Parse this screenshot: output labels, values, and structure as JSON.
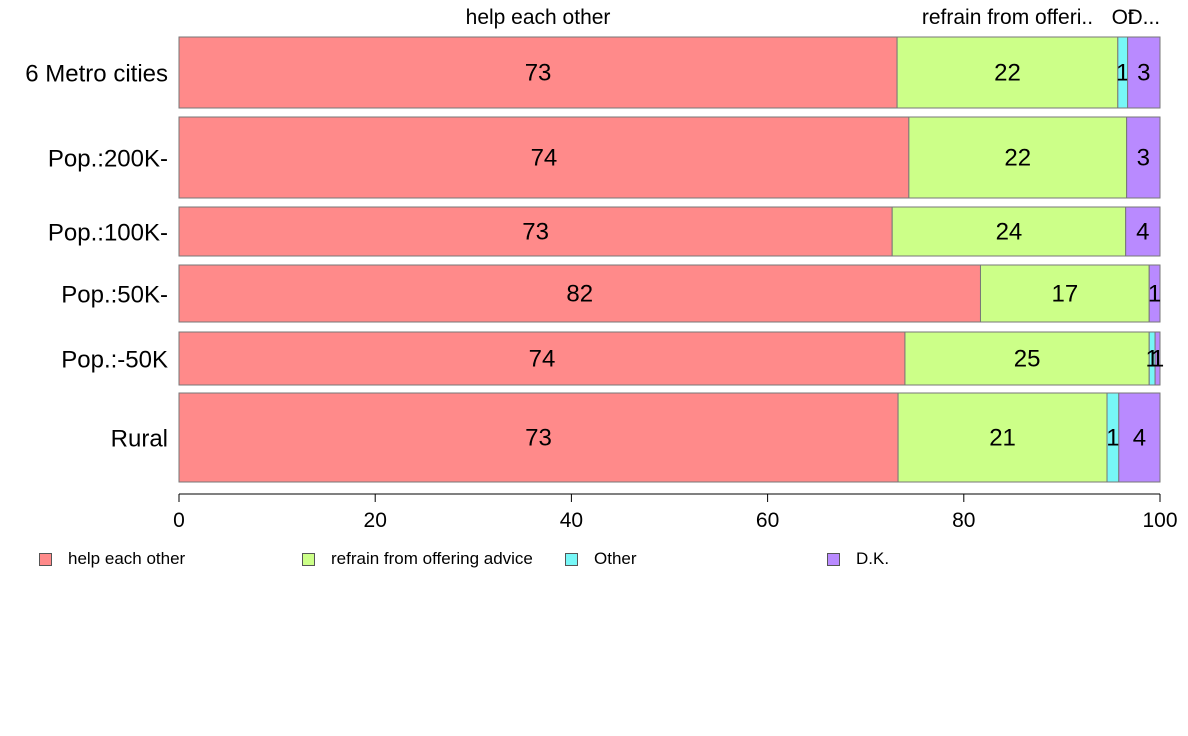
{
  "chart_data": {
    "type": "bar",
    "orientation": "horizontal",
    "stacked": true,
    "categories": [
      "6 Metro cities",
      "Pop.:200K-",
      "Pop.:100K-",
      "Pop.:50K-",
      "Pop.:-50K",
      "Rural"
    ],
    "series": [
      {
        "name": "help each other",
        "color": "#FF8A8A",
        "values": [
          73.2,
          74.4,
          72.7,
          81.7,
          74.0,
          73.3
        ],
        "labels": [
          "73",
          "74",
          "73",
          "82",
          "74",
          "73"
        ]
      },
      {
        "name": "refrain from offering advice",
        "color": "#CCFF88",
        "values": [
          22.5,
          22.2,
          23.8,
          17.2,
          24.9,
          21.3
        ],
        "labels": [
          "22",
          "22",
          "24",
          "17",
          "25",
          "21"
        ]
      },
      {
        "name": "Other",
        "color": "#77F7F7",
        "values": [
          1.0,
          0.0,
          0.0,
          0.0,
          0.6,
          1.2
        ],
        "labels": [
          "1",
          "",
          "",
          "",
          "1",
          "1"
        ]
      },
      {
        "name": "D.K.",
        "color": "#B98AFF",
        "values": [
          3.3,
          3.4,
          3.5,
          1.1,
          0.5,
          4.2
        ],
        "labels": [
          "3",
          "3",
          "4",
          "1",
          "1",
          "4"
        ]
      }
    ],
    "top_labels": [
      "help each other",
      "refrain from offeri..",
      "Ot",
      "D..."
    ],
    "xlim": [
      0,
      100
    ],
    "xticks": [
      "0",
      "20",
      "40",
      "60",
      "80",
      "100"
    ],
    "xlabel": "",
    "ylabel": "",
    "legend_position": "bottom",
    "grid": false
  }
}
